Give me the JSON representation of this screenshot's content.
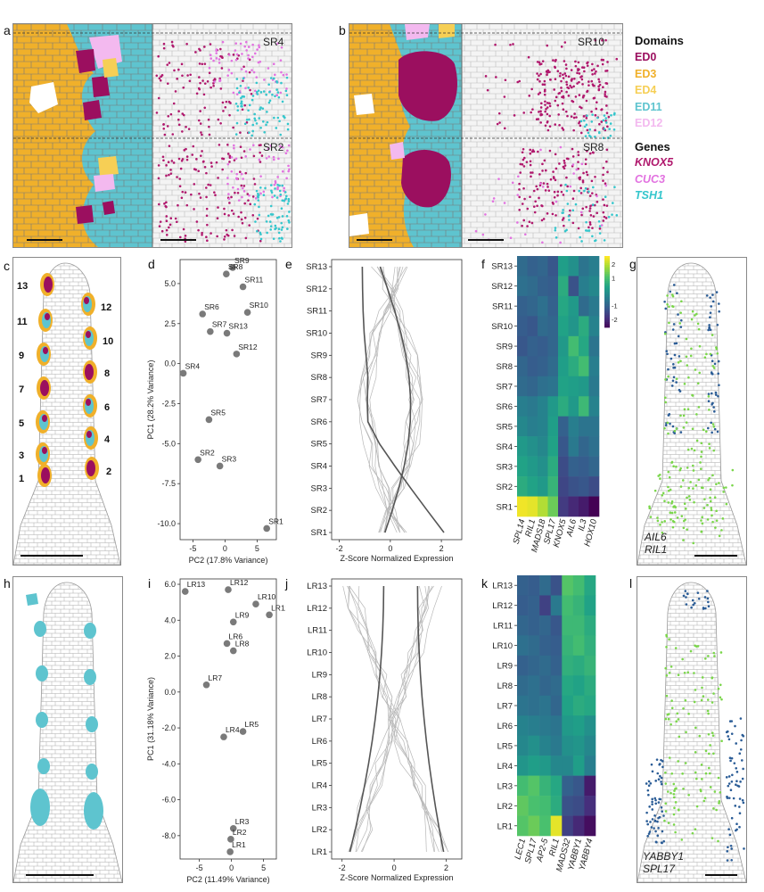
{
  "panels": {
    "a": "a",
    "b": "b",
    "c": "c",
    "d": "d",
    "e": "e",
    "f": "f",
    "g": "g",
    "h": "h",
    "i": "i",
    "j": "j",
    "k": "k",
    "l": "l"
  },
  "panel_a": {
    "top_label": "SR4",
    "bottom_label": "SR2"
  },
  "panel_b": {
    "top_label": "SR10",
    "bottom_label": "SR8"
  },
  "legend": {
    "domains_title": "Domains",
    "domains": [
      {
        "name": "ED0",
        "color": "#9b0f5f"
      },
      {
        "name": "ED3",
        "color": "#f0b02a"
      },
      {
        "name": "ED4",
        "color": "#f6cf55"
      },
      {
        "name": "ED11",
        "color": "#5ec4cf"
      },
      {
        "name": "ED12",
        "color": "#f3b9ef"
      }
    ],
    "genes_title": "Genes",
    "genes": [
      {
        "name": "KNOX5",
        "color": "#b0186d"
      },
      {
        "name": "CUC3",
        "color": "#e272e0"
      },
      {
        "name": "TSH1",
        "color": "#34c6cc"
      }
    ]
  },
  "panel_c": {
    "numbers": [
      "13",
      "12",
      "11",
      "10",
      "9",
      "8",
      "7",
      "6",
      "5",
      "4",
      "3",
      "2",
      "1"
    ]
  },
  "panel_g": {
    "genes": [
      {
        "name": "AIL6",
        "color": "#2a5c96"
      },
      {
        "name": "RIL1",
        "color": "#7ad64a"
      }
    ]
  },
  "panel_l": {
    "genes": [
      {
        "name": "YABBY1",
        "color": "#2a5c96"
      },
      {
        "name": "SPL17",
        "color": "#7ad64a"
      }
    ]
  },
  "chart_data": [
    {
      "id": "d",
      "type": "scatter",
      "xlabel": "PC2 (17.8% Variance)",
      "ylabel": "PC1 (28.2% Variance)",
      "xlim": [
        -7,
        8
      ],
      "ylim": [
        -11,
        6.5
      ],
      "xticks": [
        "-5",
        "0",
        "5"
      ],
      "xtick_values": [
        -5,
        0,
        5
      ],
      "yticks": [
        "5.0",
        "2.5",
        "0.0",
        "-2.5",
        "-5.0",
        "-7.5",
        "-10.0"
      ],
      "ytick_values": [
        5,
        2.5,
        0,
        -2.5,
        -5,
        -7.5,
        -10
      ],
      "points": [
        {
          "label": "SR9",
          "x": 1.2,
          "y": 6.0
        },
        {
          "label": "SR8",
          "x": 0.2,
          "y": 5.6
        },
        {
          "label": "SR11",
          "x": 2.8,
          "y": 4.8
        },
        {
          "label": "SR10",
          "x": 3.5,
          "y": 3.2
        },
        {
          "label": "SR6",
          "x": -3.5,
          "y": 3.1
        },
        {
          "label": "SR7",
          "x": -2.3,
          "y": 2.0
        },
        {
          "label": "SR13",
          "x": 0.3,
          "y": 1.9
        },
        {
          "label": "SR12",
          "x": 1.8,
          "y": 0.6
        },
        {
          "label": "SR4",
          "x": -6.5,
          "y": -0.6
        },
        {
          "label": "SR5",
          "x": -2.5,
          "y": -3.5
        },
        {
          "label": "SR2",
          "x": -4.2,
          "y": -6.0
        },
        {
          "label": "SR3",
          "x": -0.8,
          "y": -6.4
        },
        {
          "label": "SR1",
          "x": 6.5,
          "y": -10.3
        }
      ]
    },
    {
      "id": "e",
      "type": "line",
      "xlabel": "Z-Score Normalized Expression",
      "xlim": [
        -2.3,
        2.8
      ],
      "xticks": [
        "-2",
        "0",
        "2"
      ],
      "xtick_values": [
        -2,
        0,
        2
      ],
      "categories": [
        "SR13",
        "SR12",
        "SR11",
        "SR10",
        "SR9",
        "SR8",
        "SR7",
        "SR6",
        "SR5",
        "SR4",
        "SR3",
        "SR2",
        "SR1"
      ]
    },
    {
      "id": "f",
      "type": "heatmap",
      "rows": [
        "SR13",
        "SR12",
        "SR11",
        "SR10",
        "SR9",
        "SR8",
        "SR7",
        "SR6",
        "SR5",
        "SR4",
        "SR3",
        "SR2",
        "SR1"
      ],
      "columns": [
        "SPL14",
        "RIL1",
        "MADS18",
        "SPL17",
        "KNOX5",
        "AIL6",
        "IL3",
        "HOX10"
      ],
      "colorbar_ticks": [
        "2",
        "1",
        "-1",
        "-2"
      ],
      "colorbar_tick_values": [
        2,
        1,
        -1,
        -2
      ],
      "values": [
        [
          -0.8,
          -1.0,
          -0.9,
          -1.2,
          0.3,
          0.0,
          -0.6,
          -0.4
        ],
        [
          -0.7,
          -0.8,
          -1.0,
          -1.1,
          0.6,
          -1.3,
          -0.4,
          -0.2
        ],
        [
          -1.0,
          -0.9,
          -0.7,
          -1.0,
          0.5,
          0.2,
          -0.8,
          -0.5
        ],
        [
          -1.1,
          -1.2,
          -0.8,
          -0.9,
          0.4,
          0.1,
          0.6,
          -0.3
        ],
        [
          -1.2,
          -1.0,
          -1.1,
          -0.9,
          0.2,
          1.0,
          0.5,
          -0.6
        ],
        [
          -0.9,
          -1.1,
          -1.0,
          -0.8,
          0.3,
          0.6,
          1.0,
          -0.4
        ],
        [
          -0.8,
          -0.9,
          -0.7,
          -0.6,
          0.4,
          0.3,
          0.2,
          -0.5
        ],
        [
          -0.4,
          -0.5,
          -0.3,
          0.2,
          0.6,
          0.2,
          0.9,
          -0.3
        ],
        [
          -0.2,
          -0.4,
          -0.3,
          0.3,
          -1.0,
          -0.4,
          -0.6,
          -0.6
        ],
        [
          0.2,
          0.0,
          -0.2,
          0.4,
          -1.2,
          -0.5,
          -0.9,
          -0.7
        ],
        [
          0.4,
          0.2,
          0.0,
          0.6,
          -1.4,
          -1.0,
          -1.1,
          -0.9
        ],
        [
          0.6,
          0.4,
          0.2,
          0.8,
          -1.5,
          -1.3,
          -1.2,
          -1.4
        ],
        [
          2.5,
          2.4,
          2.0,
          1.4,
          -1.7,
          -2.0,
          -2.2,
          -2.6
        ]
      ]
    },
    {
      "id": "i",
      "type": "scatter",
      "xlabel": "PC2 (11.49% Variance)",
      "ylabel": "PC1 (31.18% Variance)",
      "xlim": [
        -8,
        7
      ],
      "ylim": [
        -9.3,
        6.3
      ],
      "xticks": [
        "-5",
        "0",
        "5"
      ],
      "xtick_values": [
        -5,
        0,
        5
      ],
      "yticks": [
        "6.0",
        "4.0",
        "2.0",
        "0.0",
        "-2.0",
        "-4.0",
        "-6.0",
        "-8.0"
      ],
      "ytick_values": [
        6,
        4,
        2,
        0,
        -2,
        -4,
        -6,
        -8
      ],
      "points": [
        {
          "label": "LR13",
          "x": -7.2,
          "y": 5.6
        },
        {
          "label": "LR12",
          "x": -0.5,
          "y": 5.7
        },
        {
          "label": "LR10",
          "x": 3.8,
          "y": 4.9
        },
        {
          "label": "LR11",
          "x": 5.9,
          "y": 4.3
        },
        {
          "label": "LR9",
          "x": 0.3,
          "y": 3.9
        },
        {
          "label": "LR6",
          "x": -0.7,
          "y": 2.7
        },
        {
          "label": "LR8",
          "x": 0.3,
          "y": 2.3
        },
        {
          "label": "LR7",
          "x": -3.9,
          "y": 0.4
        },
        {
          "label": "LR5",
          "x": 1.8,
          "y": -2.2
        },
        {
          "label": "LR4",
          "x": -1.2,
          "y": -2.5
        },
        {
          "label": "LR3",
          "x": 0.3,
          "y": -7.6
        },
        {
          "label": "LR2",
          "x": -0.1,
          "y": -8.2
        },
        {
          "label": "LR1",
          "x": -0.2,
          "y": -8.9
        }
      ]
    },
    {
      "id": "j",
      "type": "line",
      "xlabel": "Z-Score Normalized Expression",
      "xlim": [
        -2.4,
        2.6
      ],
      "xticks": [
        "-2",
        "0",
        "2"
      ],
      "xtick_values": [
        -2,
        0,
        2
      ],
      "categories": [
        "LR13",
        "LR12",
        "LR11",
        "LR10",
        "LR9",
        "LR8",
        "LR7",
        "LR6",
        "LR5",
        "LR4",
        "LR3",
        "LR2",
        "LR1"
      ]
    },
    {
      "id": "k",
      "type": "heatmap",
      "rows": [
        "LR13",
        "LR12",
        "LR11",
        "LR10",
        "LR9",
        "LR8",
        "LR7",
        "LR6",
        "LR5",
        "LR4",
        "LR3",
        "LR2",
        "LR1"
      ],
      "columns": [
        "LEC1",
        "SPL17",
        "AP2-5",
        "RIL1",
        "MADS32",
        "YABBY1",
        "YABBY4"
      ],
      "values": [
        [
          -1.0,
          -1.1,
          -0.8,
          -1.3,
          1.2,
          1.0,
          0.5
        ],
        [
          -1.1,
          -1.0,
          -1.6,
          -0.5,
          1.0,
          0.8,
          0.4
        ],
        [
          -0.9,
          -1.0,
          -0.9,
          -1.2,
          0.9,
          0.9,
          0.6
        ],
        [
          -0.7,
          -0.8,
          -1.0,
          -1.1,
          0.8,
          1.0,
          0.7
        ],
        [
          -1.0,
          -0.9,
          -0.8,
          -1.0,
          0.7,
          0.6,
          0.8
        ],
        [
          -0.8,
          -0.7,
          -0.9,
          -0.8,
          0.5,
          0.4,
          0.6
        ],
        [
          -0.6,
          -0.7,
          -0.6,
          -0.9,
          0.4,
          0.6,
          0.5
        ],
        [
          -0.3,
          -0.4,
          -0.5,
          -0.6,
          0.2,
          0.3,
          0.0
        ],
        [
          -0.2,
          0.0,
          -0.3,
          -0.5,
          0.0,
          0.1,
          -0.2
        ],
        [
          0.1,
          0.3,
          0.2,
          -0.2,
          -0.2,
          0.3,
          -0.4
        ],
        [
          1.0,
          1.2,
          0.8,
          0.5,
          -1.0,
          -1.2,
          -2.2
        ],
        [
          1.3,
          1.1,
          1.0,
          0.6,
          -1.3,
          -1.4,
          -1.9
        ],
        [
          1.2,
          1.4,
          1.1,
          2.4,
          -1.6,
          -2.0,
          -2.4
        ]
      ]
    }
  ]
}
